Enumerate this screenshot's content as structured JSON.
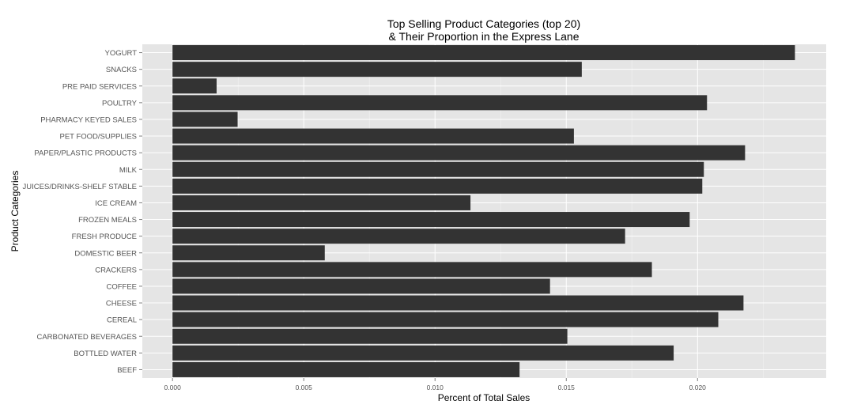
{
  "chart_data": {
    "type": "bar",
    "orientation": "horizontal",
    "title": [
      "Top Selling Product Categories (top 20)",
      "& Their Proportion in the Express Lane"
    ],
    "xlabel": "Percent of Total Sales",
    "ylabel": "Product Categories",
    "xlim": [
      -0.00115,
      0.0249
    ],
    "x_ticks": [
      "0.000",
      "0.005",
      "0.010",
      "0.015",
      "0.020"
    ],
    "x_tick_values": [
      0,
      0.005,
      0.01,
      0.015,
      0.02
    ],
    "grid": true,
    "legend": "none",
    "bar_color": "#333333",
    "panel_color": "#e5e5e5",
    "categories": [
      "YOGURT",
      "SNACKS",
      "PRE PAID SERVICES",
      "POULTRY",
      "PHARMACY KEYED SALES",
      "PET FOOD/SUPPLIES",
      "PAPER/PLASTIC PRODUCTS",
      "MILK",
      "JUICES/DRINKS-SHELF STABLE",
      "ICE CREAM",
      "FROZEN MEALS",
      "FRESH PRODUCE",
      "DOMESTIC BEER",
      "CRACKERS",
      "COFFEE",
      "CHEESE",
      "CEREAL",
      "CARBONATED BEVERAGES",
      "BOTTLED WATER",
      "BEEF"
    ],
    "values": [
      0.02371,
      0.01559,
      0.00168,
      0.02036,
      0.00248,
      0.01529,
      0.02181,
      0.02024,
      0.02018,
      0.01135,
      0.0197,
      0.01724,
      0.0058,
      0.01826,
      0.01438,
      0.02175,
      0.02079,
      0.01504,
      0.01909,
      0.01322
    ]
  }
}
